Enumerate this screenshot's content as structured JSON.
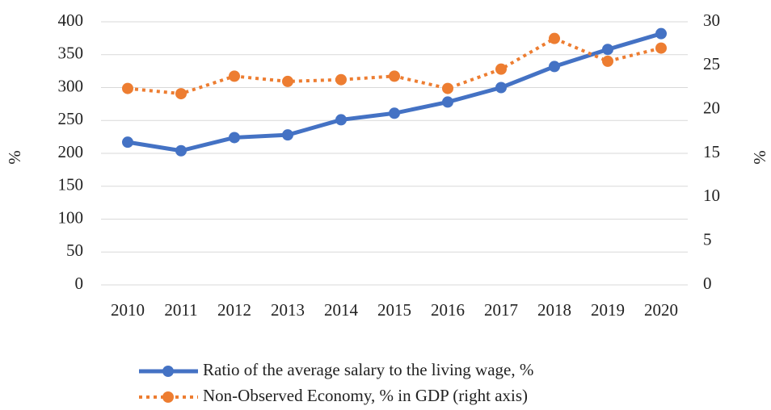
{
  "chart_data": {
    "type": "line",
    "categories": [
      "2010",
      "2011",
      "2012",
      "2013",
      "2014",
      "2015",
      "2016",
      "2017",
      "2018",
      "2019",
      "2020"
    ],
    "series": [
      {
        "name": "Ratio of the average salary to the living wage, %",
        "color": "#4472c4",
        "values": [
          217,
          204,
          224,
          228,
          251,
          261,
          278,
          300,
          332,
          358,
          382
        ]
      },
      {
        "name": "Non-Observed Economy, % in GDP (right axis)",
        "color": "#ed7d31",
        "axis": "y2",
        "values": [
          22.4,
          21.8,
          23.8,
          23.2,
          23.4,
          23.8,
          22.4,
          24.6,
          28.1,
          25.5,
          27.0
        ]
      }
    ],
    "ylabel": "%",
    "y2label": "%",
    "ylim": [
      0,
      400
    ],
    "yticks": [
      0,
      50,
      100,
      150,
      200,
      250,
      300,
      350,
      400
    ],
    "y2lim": [
      0,
      30
    ],
    "y2ticks": [
      0,
      5,
      10,
      15,
      20,
      25,
      30
    ],
    "grid": true,
    "legend": "bottom"
  }
}
